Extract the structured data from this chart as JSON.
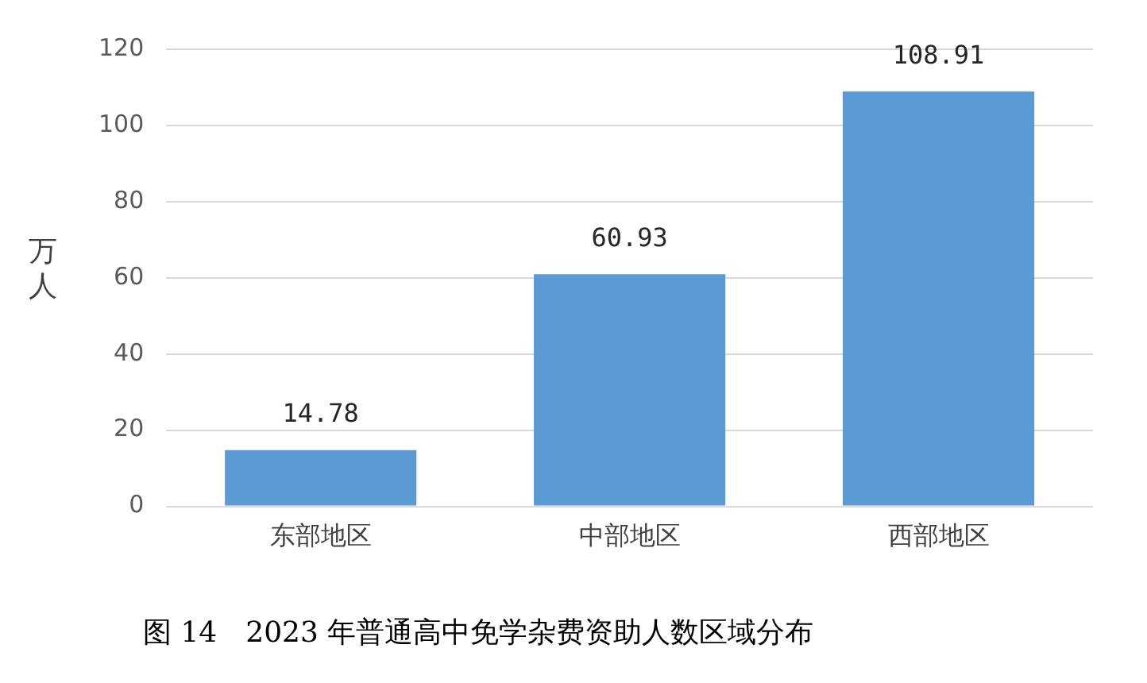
{
  "chart_data": {
    "type": "bar",
    "title": "图 14　2023 年普通高中免学杂费资助人数区域分布",
    "ylabel": "万人",
    "categories": [
      "东部地区",
      "中部地区",
      "西部地区"
    ],
    "values": [
      14.78,
      60.93,
      108.91
    ],
    "color": "#5b9bd5",
    "ylim": [
      0,
      120
    ],
    "yticks": [
      0,
      20,
      40,
      60,
      80,
      100,
      120
    ],
    "grid": "y",
    "data_labels": true,
    "legend": false
  }
}
